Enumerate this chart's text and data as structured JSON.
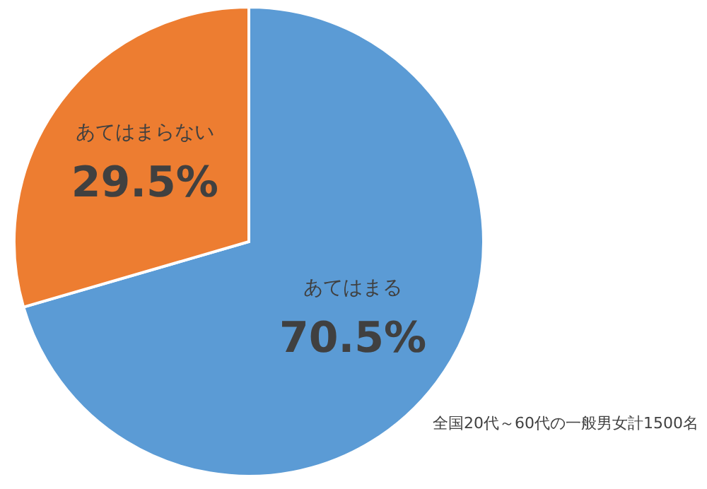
{
  "chart_data": {
    "type": "pie",
    "categories": [
      "あてはまる",
      "あてはまらない"
    ],
    "values": [
      70.5,
      29.5
    ],
    "colors": [
      "#5b9bd5",
      "#ed7d31"
    ],
    "value_labels": [
      "70.5%",
      "29.5%"
    ],
    "annotations": [
      "全国20代～60代の一般男女計1500名"
    ]
  }
}
